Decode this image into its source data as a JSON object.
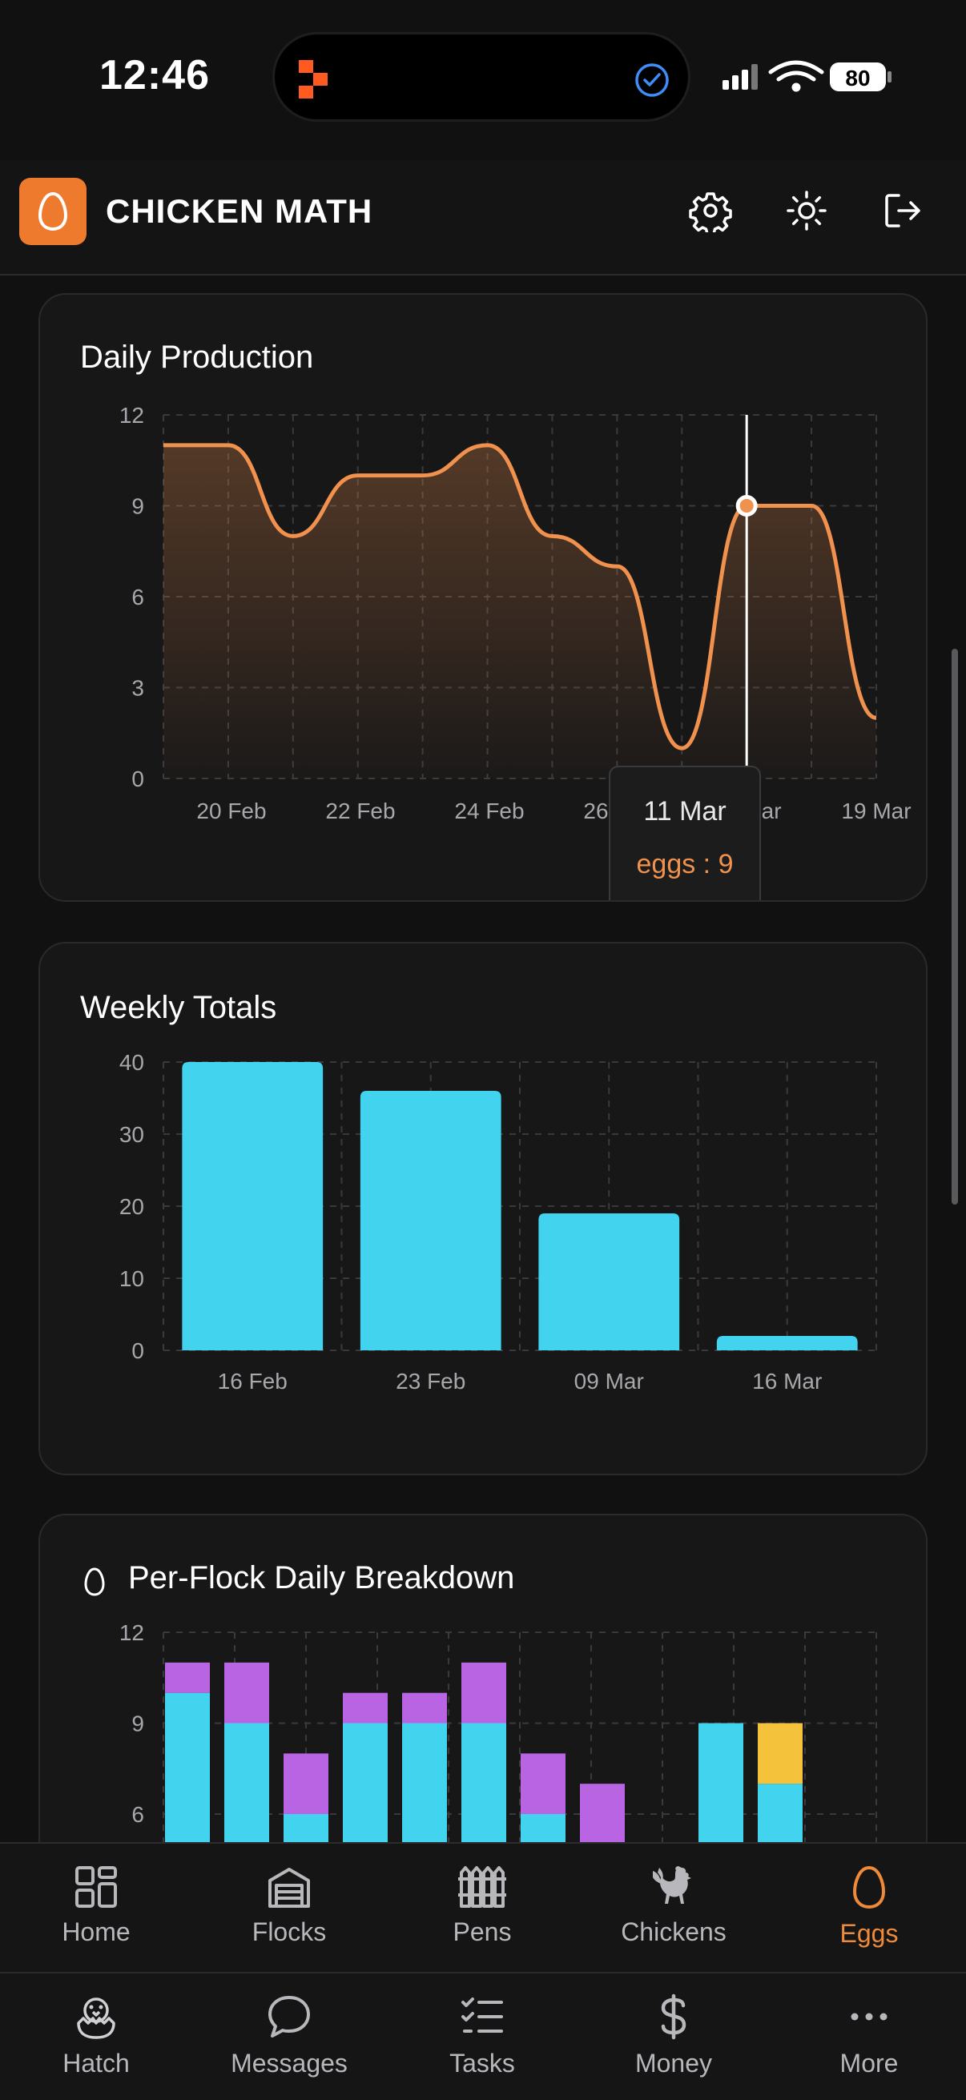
{
  "status_bar": {
    "time": "12:46",
    "battery": "80"
  },
  "header": {
    "title": "CHICKEN MATH"
  },
  "daily_production": {
    "title": "Daily Production",
    "tooltip": {
      "label": "11 Mar",
      "value_text": "eggs : 9"
    },
    "chart_data": {
      "type": "area",
      "x_tick_labels": [
        "20 Feb",
        "22 Feb",
        "24 Feb",
        "26 Feb",
        "11 Mar",
        "19 Mar"
      ],
      "y_ticks": [
        0,
        3,
        6,
        9,
        12
      ],
      "ylim": [
        0,
        12
      ],
      "series": [
        {
          "name": "eggs",
          "values": [
            11,
            11,
            8,
            10,
            10,
            11,
            8,
            7,
            1,
            9,
            9,
            2
          ]
        }
      ],
      "grid": true,
      "color": "#f0914d"
    }
  },
  "weekly_totals": {
    "title": "Weekly Totals",
    "chart_data": {
      "type": "bar",
      "categories": [
        "16 Feb",
        "23 Feb",
        "09 Mar",
        "16 Mar"
      ],
      "values": [
        40,
        36,
        19,
        2
      ],
      "y_ticks": [
        0,
        10,
        20,
        30,
        40
      ],
      "ylim": [
        0,
        40
      ],
      "grid": true,
      "color": "#42d3ef"
    }
  },
  "per_flock": {
    "title": "Per-Flock Daily Breakdown",
    "chart_data": {
      "type": "bar",
      "stacked": true,
      "y_ticks": [
        6,
        9,
        12
      ],
      "ylim": [
        0,
        12
      ],
      "series": [
        {
          "values": [
            10,
            9,
            6,
            9,
            9,
            9,
            6,
            0,
            0,
            9,
            7
          ],
          "color": "#42d3ef"
        },
        {
          "values": [
            1,
            2,
            2,
            1,
            1,
            2,
            2,
            7,
            0,
            0,
            0
          ],
          "color": "#b965e3"
        },
        {
          "values": [
            0,
            0,
            0,
            0,
            0,
            0,
            0,
            0,
            0,
            0,
            2
          ],
          "color": "#f5c33b"
        }
      ],
      "grid": true
    }
  },
  "nav": {
    "top": [
      {
        "label": "Home",
        "icon": "grid-icon"
      },
      {
        "label": "Flocks",
        "icon": "flocks-icon"
      },
      {
        "label": "Pens",
        "icon": "fence-icon"
      },
      {
        "label": "Chickens",
        "icon": "rooster-icon"
      },
      {
        "label": "Eggs",
        "icon": "egg-icon",
        "active": true
      }
    ],
    "bottom": [
      {
        "label": "Hatch",
        "icon": "hatching-chick-icon"
      },
      {
        "label": "Messages",
        "icon": "chat-bubble-icon"
      },
      {
        "label": "Tasks",
        "icon": "checklist-icon"
      },
      {
        "label": "Money",
        "icon": "dollar-icon"
      },
      {
        "label": "More",
        "icon": "ellipsis-icon"
      }
    ]
  }
}
